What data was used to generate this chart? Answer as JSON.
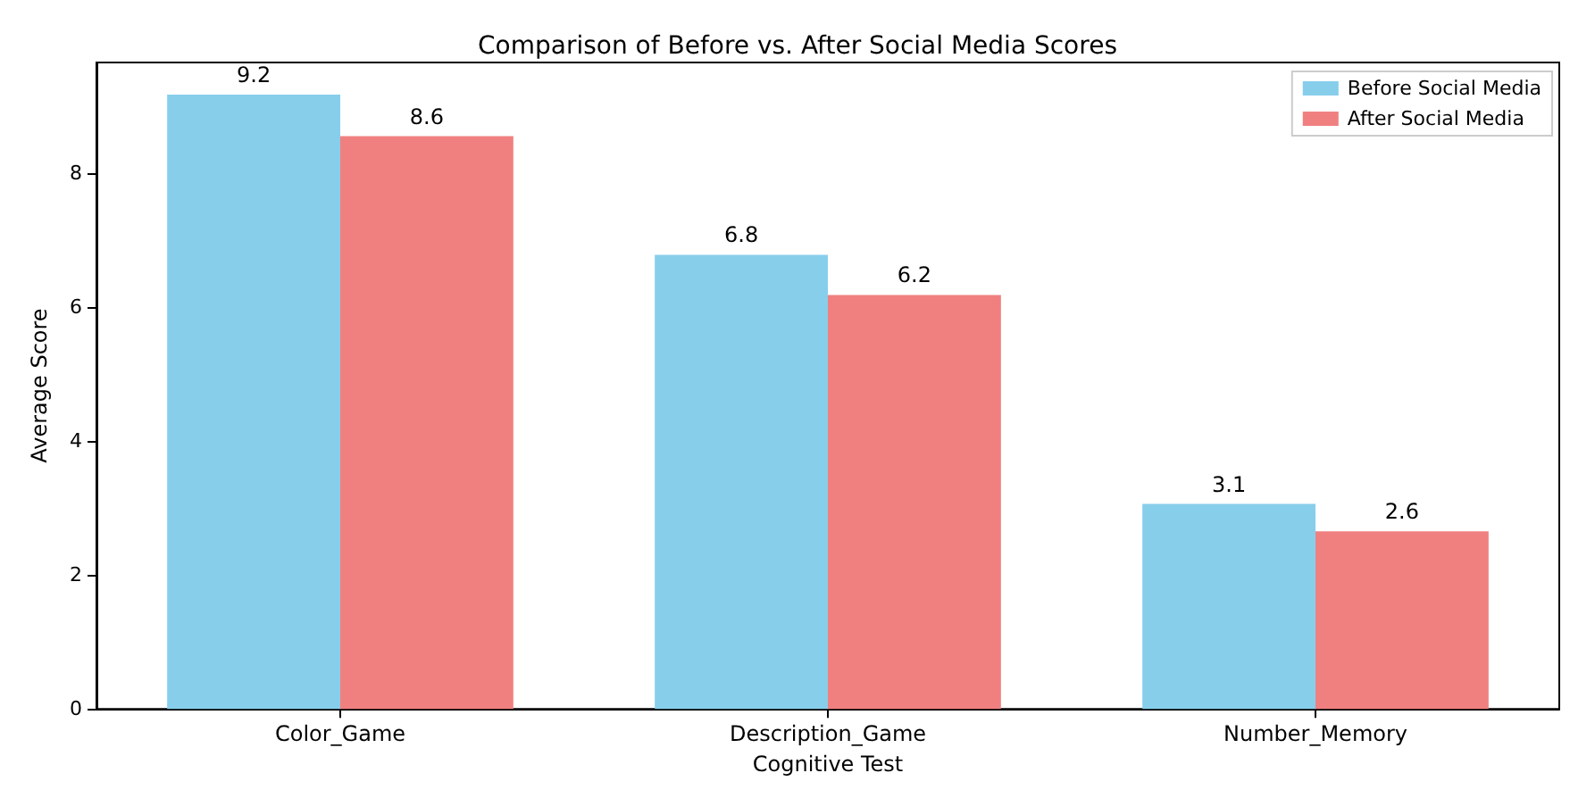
{
  "chart_data": {
    "type": "bar",
    "title": "Comparison of Before vs. After Social Media Scores",
    "xlabel": "Cognitive Test",
    "ylabel": "Average Score",
    "categories": [
      "Color_Game",
      "Description_Game",
      "Number_Memory"
    ],
    "series": [
      {
        "name": "Before Social Media",
        "color": "#87ceeb",
        "values": [
          9.17,
          6.78,
          3.06
        ],
        "value_labels": [
          "9.2",
          "6.8",
          "3.1"
        ]
      },
      {
        "name": "After Social Media",
        "color": "#f08080",
        "values": [
          8.55,
          6.18,
          2.65
        ],
        "value_labels": [
          "8.6",
          "6.2",
          "2.6"
        ]
      }
    ],
    "ylim": [
      0,
      9.65
    ],
    "yticks": [
      0,
      2,
      4,
      6,
      8
    ],
    "grid": false,
    "legend": "top right"
  }
}
